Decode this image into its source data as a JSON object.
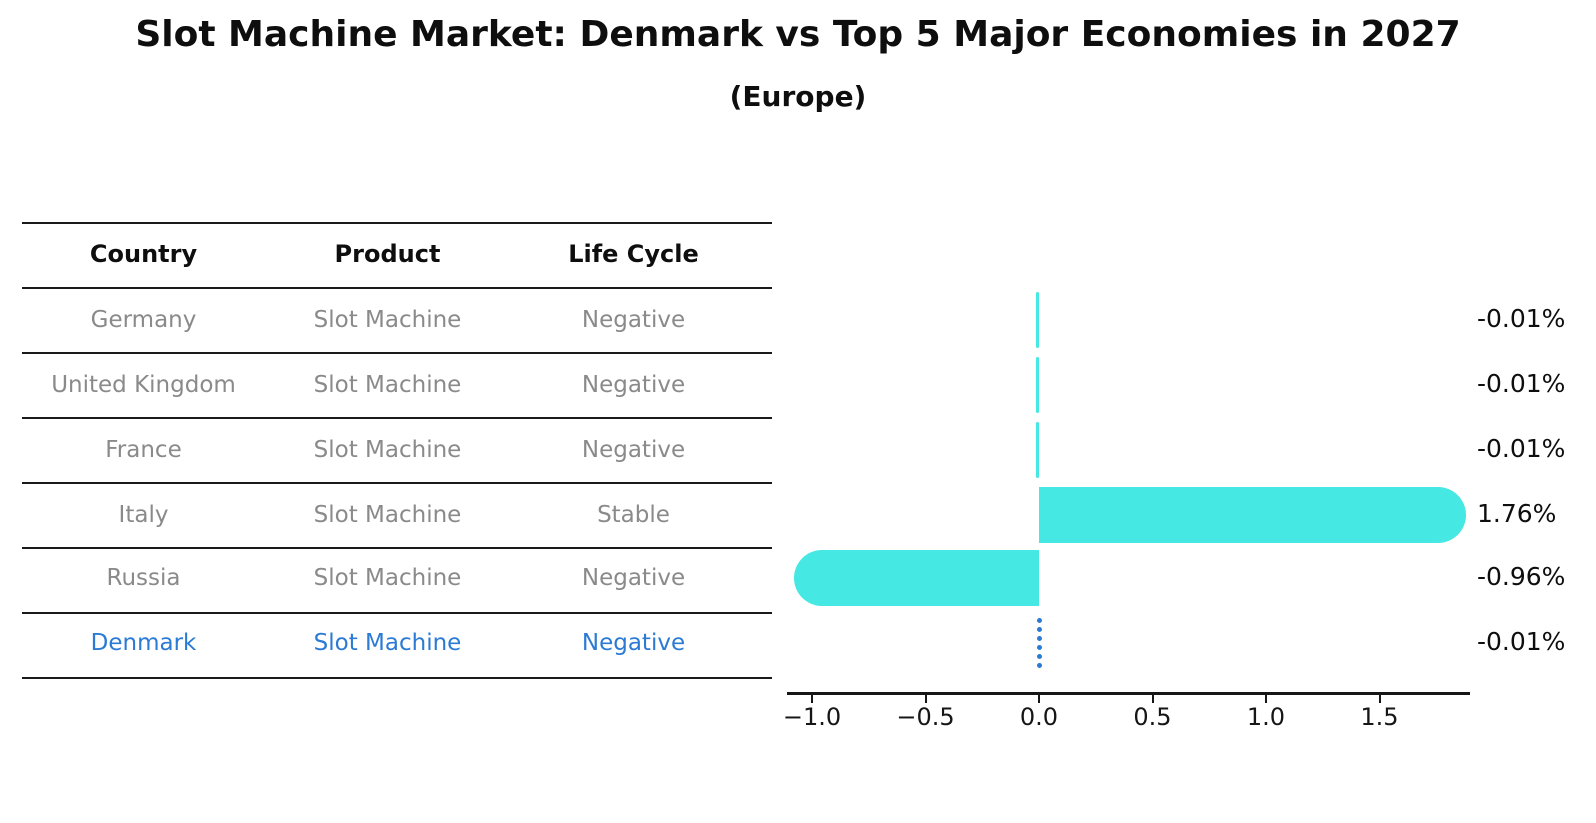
{
  "title": "Slot Machine Market: Denmark vs Top 5 Major Economies in 2027",
  "subtitle": "(Europe)",
  "table": {
    "headers": [
      "Country",
      "Product",
      "Life Cycle"
    ],
    "rows": [
      {
        "country": "Germany",
        "product": "Slot Machine",
        "life_cycle": "Negative",
        "highlighted": false
      },
      {
        "country": "United Kingdom",
        "product": "Slot Machine",
        "life_cycle": "Negative",
        "highlighted": false
      },
      {
        "country": "France",
        "product": "Slot Machine",
        "life_cycle": "Negative",
        "highlighted": false
      },
      {
        "country": "Italy",
        "product": "Slot Machine",
        "life_cycle": "Stable",
        "highlighted": false
      },
      {
        "country": "Russia",
        "product": "Slot Machine",
        "life_cycle": "Negative",
        "highlighted": false
      },
      {
        "country": "Denmark",
        "product": "Slot Machine",
        "life_cycle": "Negative",
        "highlighted": true
      }
    ]
  },
  "chart_data": {
    "type": "bar",
    "orientation": "horizontal",
    "categories": [
      "Germany",
      "United Kingdom",
      "France",
      "Italy",
      "Russia",
      "Denmark"
    ],
    "values": [
      -0.01,
      -0.01,
      -0.01,
      1.76,
      -0.96,
      -0.01
    ],
    "value_labels": [
      "-0.01%",
      "-0.01%",
      "-0.01%",
      "1.76%",
      "-0.96%",
      "-0.01%"
    ],
    "title": "",
    "xlabel": "",
    "ylabel": "",
    "xlim": [
      -1.12,
      1.9
    ],
    "grid": false,
    "legend": false,
    "xticks": {
      "values": [
        -1.0,
        -0.5,
        0.0,
        0.5,
        1.0,
        1.5
      ],
      "labels": [
        "−1.0",
        "−0.5",
        "0.0",
        "0.5",
        "1.0",
        "1.5"
      ]
    },
    "bar_color": "#46e8e3",
    "highlight_color": "#2b7bd4",
    "highlight_marker": "dotted-vertical-line"
  }
}
